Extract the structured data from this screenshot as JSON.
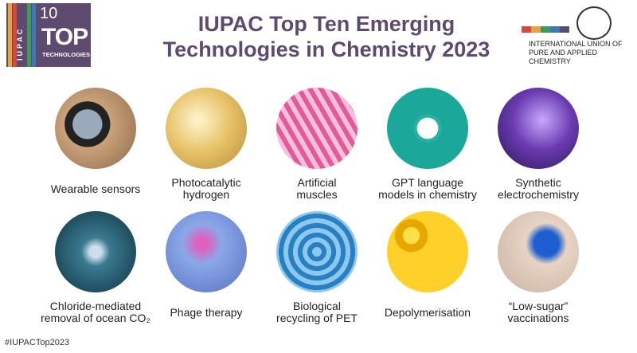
{
  "logo": {
    "number": "10",
    "brand": "IUPAC",
    "word": "TOP",
    "subtitle": "TECHNOLOGIES"
  },
  "header": {
    "title_lines": [
      "IUPAC Top Ten Emerging",
      "Technologies in Chemistry 2023"
    ],
    "organization_lines": [
      "INTERNATIONAL UNION OF",
      "PURE AND APPLIED CHEMISTRY"
    ]
  },
  "items": [
    {
      "label_lines": [
        "Wearable sensors"
      ]
    },
    {
      "label_lines": [
        "Photocatalytic",
        "hydrogen"
      ]
    },
    {
      "label_lines": [
        "Artificial",
        "muscles"
      ]
    },
    {
      "label_lines": [
        "GPT language",
        "models in chemistry"
      ]
    },
    {
      "label_lines": [
        "Synthetic",
        "electrochemistry"
      ]
    },
    {
      "label_lines": [
        "Chloride-mediated",
        "removal of ocean CO₂"
      ]
    },
    {
      "label_lines": [
        "Phage therapy"
      ]
    },
    {
      "label_lines": [
        "Biological",
        "recycling of PET"
      ]
    },
    {
      "label_lines": [
        "Depolymerisation"
      ]
    },
    {
      "label_lines": [
        "“Low-sugar”",
        "vaccinations"
      ]
    }
  ],
  "footer": {
    "hashtag": "#IUPACTop2023"
  }
}
